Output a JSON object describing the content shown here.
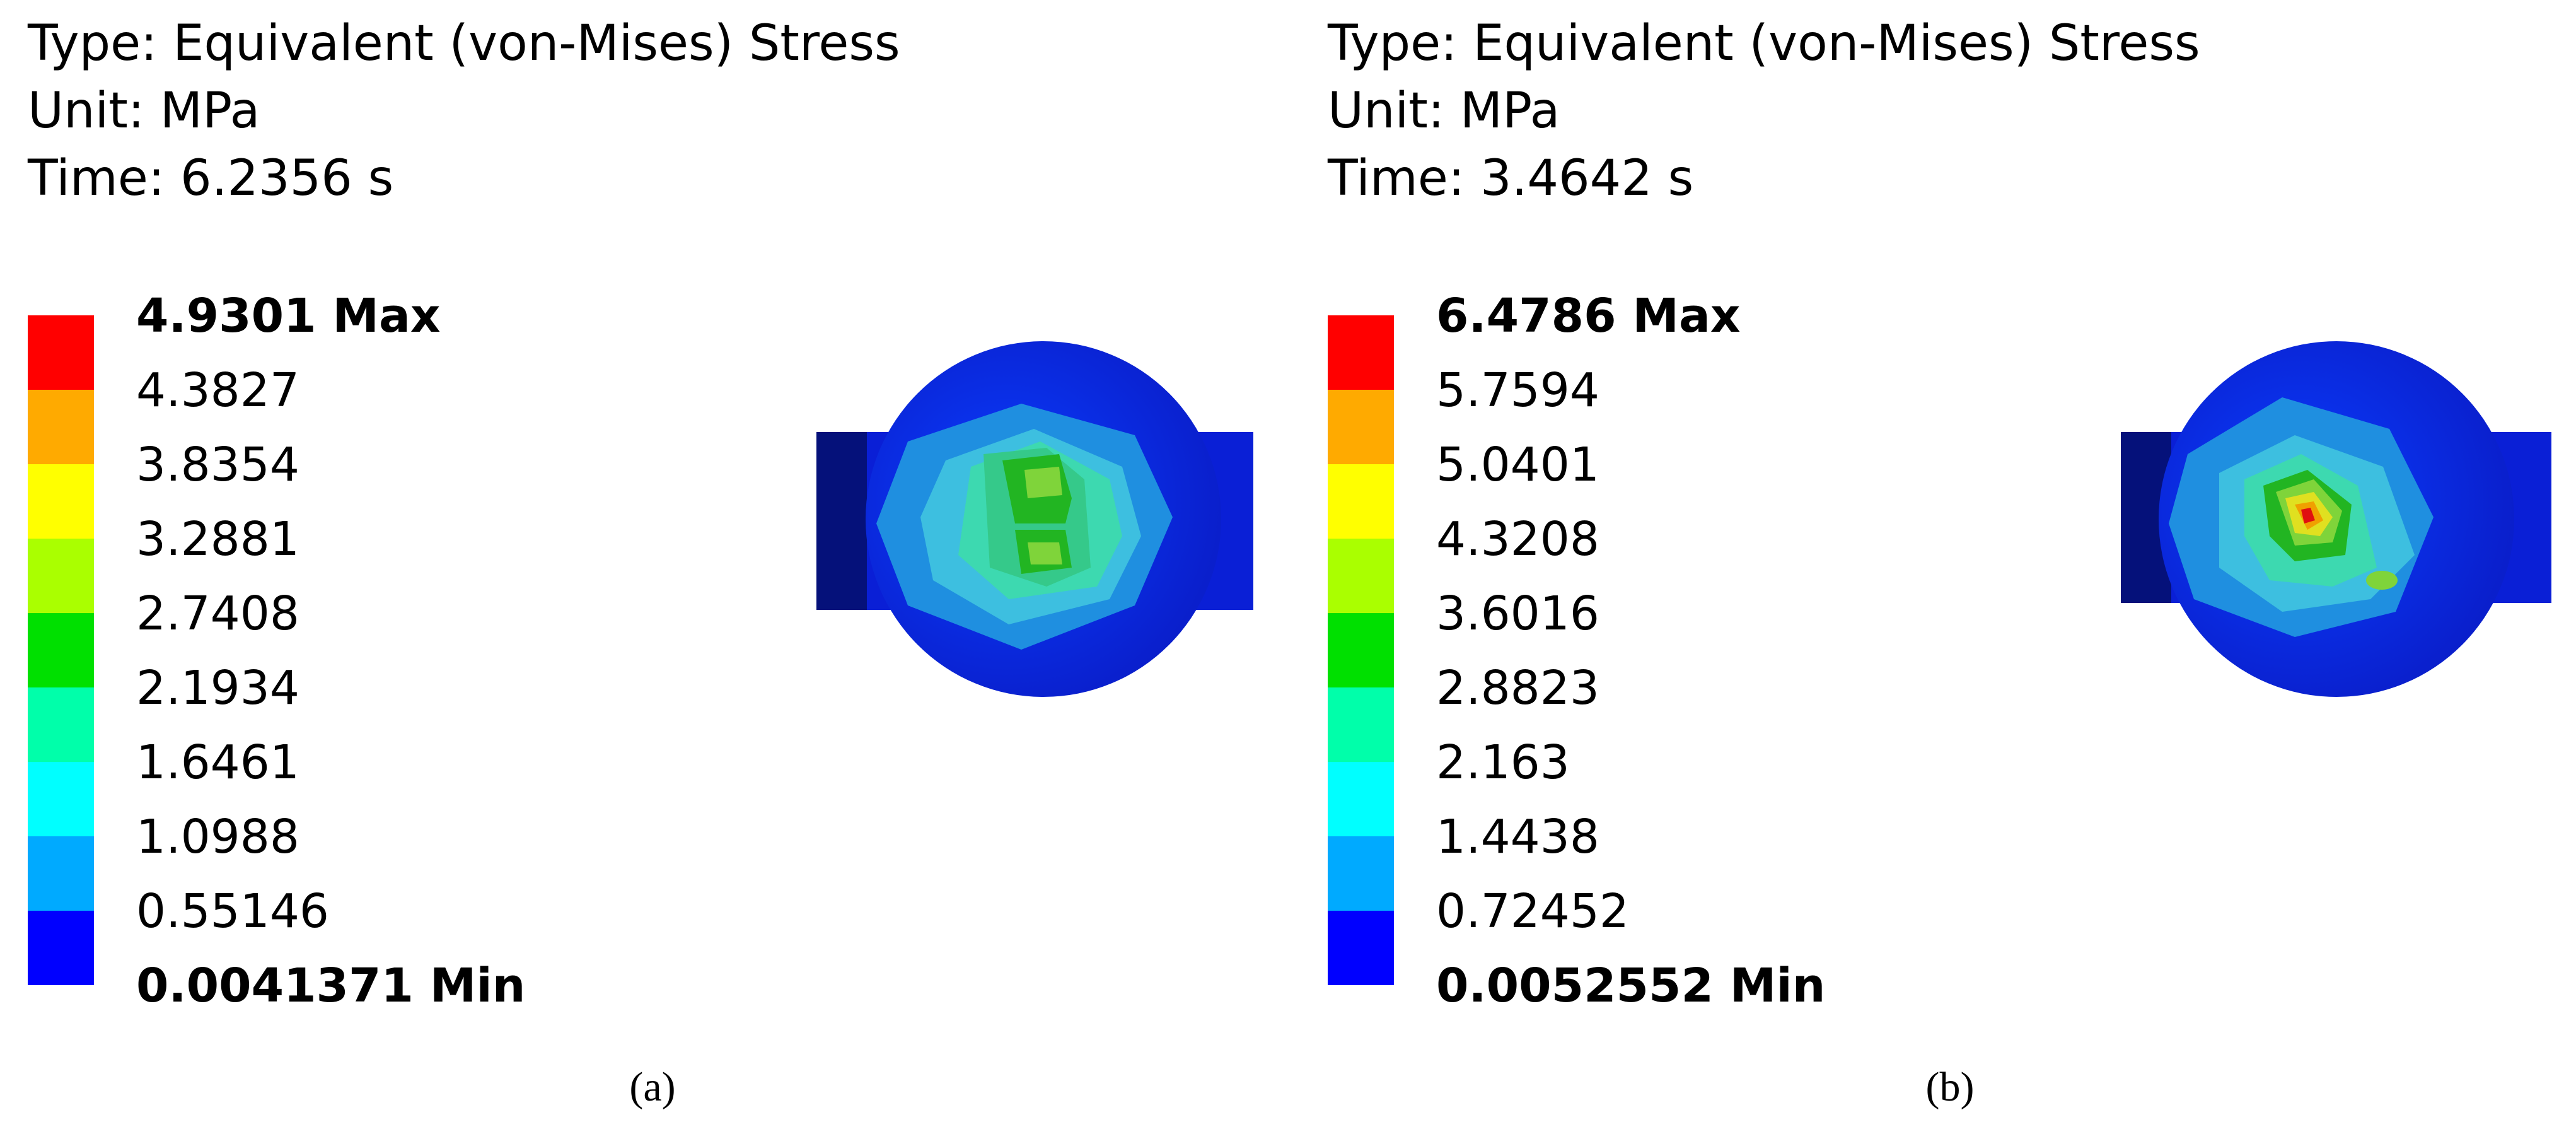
{
  "panels": [
    {
      "type_line": "Type: Equivalent (von-Mises) Stress",
      "unit_line": "Unit: MPa",
      "time_line": "Time: 6.2356 s",
      "legend": [
        "4.9301 Max",
        "4.3827",
        "3.8354",
        "3.2881",
        "2.7408",
        "2.1934",
        "1.6461",
        "1.0988",
        "0.55146",
        "0.0041371 Min"
      ],
      "caption": "(a)"
    },
    {
      "type_line": "Type: Equivalent (von-Mises) Stress",
      "unit_line": "Unit: MPa",
      "time_line": "Time: 3.4642 s",
      "legend": [
        "6.4786 Max",
        "5.7594",
        "5.0401",
        "4.3208",
        "3.6016",
        "2.8823",
        "2.163",
        "1.4438",
        "0.72452",
        "0.0052552 Min"
      ],
      "caption": "(b)"
    }
  ]
}
